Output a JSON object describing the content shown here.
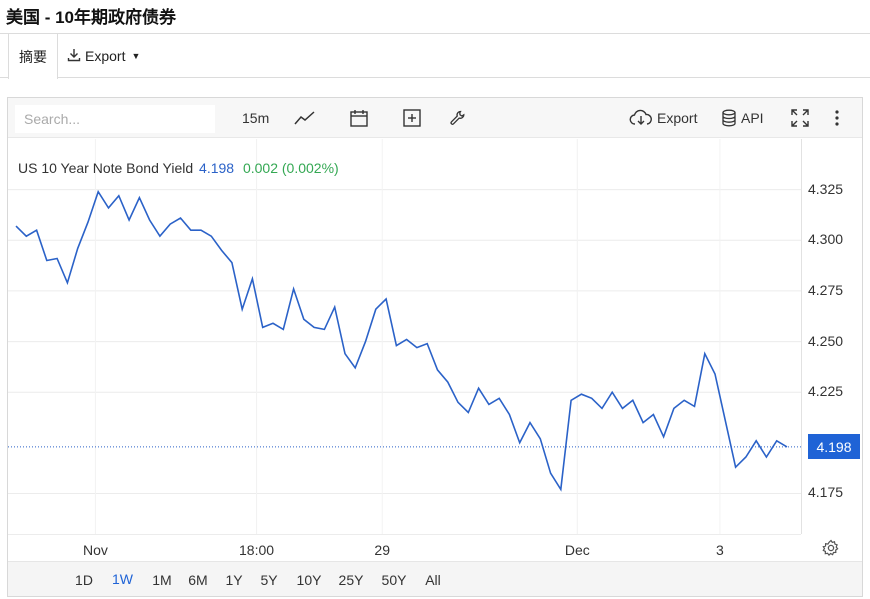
{
  "page": {
    "title": "美国 - 10年期政府债券"
  },
  "tabs": {
    "summary": "摘要",
    "export": "Export"
  },
  "toolbar": {
    "search_placeholder": "Search...",
    "interval": "15m",
    "export_label": "Export",
    "api_label": "API",
    "icons": [
      "line-chart-icon",
      "calendar-icon",
      "add-indicator-icon",
      "wrench-icon",
      "cloud-download-icon",
      "database-icon",
      "fullscreen-icon",
      "more-vertical-icon",
      "settings-gear-icon"
    ]
  },
  "legend": {
    "name": "US 10 Year Note Bond Yield",
    "value": "4.198",
    "change": "0.002 (0.002%)"
  },
  "colors": {
    "line": "#2b62c8",
    "accent": "#1f63d6",
    "positive": "#34a853"
  },
  "price_tag": "4.198",
  "ranges": [
    "1D",
    "1W",
    "1M",
    "6M",
    "1Y",
    "5Y",
    "10Y",
    "25Y",
    "50Y",
    "All"
  ],
  "active_range": "1W",
  "chart_data": {
    "type": "line",
    "series": [
      {
        "name": "US 10 Year Note Bond Yield",
        "values": [
          4.307,
          4.302,
          4.305,
          4.29,
          4.291,
          4.279,
          4.296,
          4.309,
          4.324,
          4.316,
          4.322,
          4.31,
          4.321,
          4.31,
          4.302,
          4.308,
          4.311,
          4.305,
          4.305,
          4.302,
          4.295,
          4.289,
          4.266,
          4.281,
          4.257,
          4.259,
          4.256,
          4.276,
          4.261,
          4.257,
          4.256,
          4.267,
          4.244,
          4.237,
          4.25,
          4.266,
          4.271,
          4.248,
          4.251,
          4.247,
          4.249,
          4.236,
          4.23,
          4.22,
          4.215,
          4.227,
          4.219,
          4.222,
          4.214,
          4.2,
          4.21,
          4.202,
          4.185,
          4.177,
          4.221,
          4.224,
          4.222,
          4.217,
          4.225,
          4.217,
          4.221,
          4.21,
          4.214,
          4.203,
          4.217,
          4.221,
          4.218,
          4.244,
          4.234,
          4.211,
          4.188,
          4.193,
          4.201,
          4.193,
          4.201,
          4.198
        ]
      }
    ],
    "x_ticks": [
      "Nov",
      "18:00",
      "29",
      "Dec",
      "3"
    ],
    "y_ticks": [
      4.325,
      4.3,
      4.275,
      4.25,
      4.225,
      4.175
    ],
    "ylim": [
      4.155,
      4.35
    ],
    "last_value": 4.198,
    "grid": true,
    "legend_position": "top-left"
  }
}
